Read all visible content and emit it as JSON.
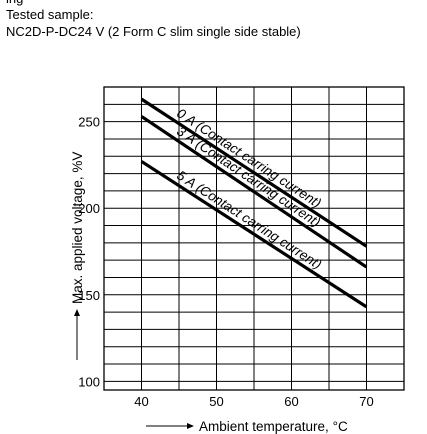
{
  "header": {
    "top_cut": "ing",
    "line1": "Tested sample:",
    "line2": "NC2D-P-DC24 V (2 Form C slim single side stable)"
  },
  "chart_data": {
    "type": "line",
    "xlabel": "Ambient temperature, °C",
    "ylabel": "Max. applied voltage, %V",
    "xlim": [
      35,
      75
    ],
    "ylim": [
      95,
      270
    ],
    "xticks": [
      40,
      50,
      60,
      70
    ],
    "yticks": [
      100,
      150,
      200,
      250
    ],
    "x_grid_step": 5,
    "y_grid_step": 10,
    "grid": true,
    "series": [
      {
        "name": "0 A (Contact carring current)",
        "x": [
          40,
          70
        ],
        "values": [
          263,
          178
        ]
      },
      {
        "name": "3 A (Contact carring current)",
        "x": [
          40,
          70
        ],
        "values": [
          253,
          166
        ]
      },
      {
        "name": "5 A (Contact carring current)",
        "x": [
          40,
          70
        ],
        "values": [
          227,
          143
        ]
      }
    ]
  }
}
